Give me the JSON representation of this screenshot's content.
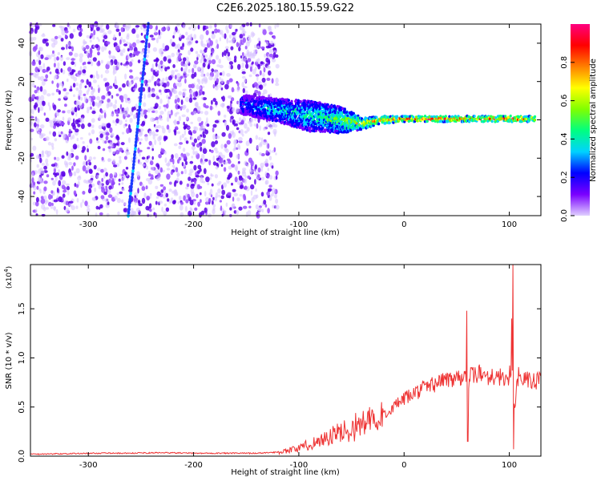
{
  "figure": {
    "title": "C2E6.2025.180.15.59.G22"
  },
  "chart_data": [
    {
      "type": "heatmap",
      "xlabel": "Height of straight line (km)",
      "ylabel": "Frequency (Hz)",
      "xlim": [
        -355,
        130
      ],
      "ylim": [
        -50,
        50
      ],
      "xticks": [
        -300,
        -200,
        -100,
        0,
        100
      ],
      "xtick_labels": [
        "-300",
        "-200",
        "-100",
        "0",
        "100"
      ],
      "yticks": [
        -40,
        -20,
        0,
        20,
        40
      ],
      "ytick_labels": [
        "-40",
        "-20",
        "0",
        "20",
        "40"
      ],
      "colorbar": {
        "label": "Normalized spectral amplitude",
        "range": [
          0,
          1
        ],
        "ticks": [
          0.0,
          0.2,
          0.4,
          0.6,
          0.8
        ],
        "tick_labels": [
          "0.0",
          "0.2",
          "0.4",
          "0.6",
          "0.8"
        ],
        "colors": [
          "#e0d0ff",
          "#7a00ff",
          "#0000ff",
          "#00d2ff",
          "#00ff80",
          "#80ff00",
          "#ffff00",
          "#ff8000",
          "#ff0000",
          "#ff0080"
        ]
      },
      "features": [
        {
          "name": "noise_band",
          "x_range": [
            -355,
            -120
          ],
          "freq_range": [
            -50,
            50
          ],
          "amplitude": 0.15
        },
        {
          "name": "diagonal_track",
          "x": [
            -262,
            -243
          ],
          "freq": [
            -50,
            50
          ],
          "amplitude": 0.35
        },
        {
          "name": "signal_band",
          "x": [
            -155,
            -120,
            -90,
            -60,
            -40,
            -20,
            0,
            20,
            50,
            80,
            100,
            125
          ],
          "freq": [
            8,
            5,
            2,
            0,
            -2,
            0,
            0.5,
            0.5,
            0.5,
            0.5,
            0.5,
            0.5
          ],
          "half_width": [
            5,
            6,
            8,
            7,
            3,
            2,
            1.5,
            1.5,
            1.5,
            1.5,
            1.5,
            1.5
          ],
          "amplitude": [
            0.3,
            0.4,
            0.45,
            0.55,
            0.7,
            0.85,
            0.9,
            0.9,
            0.85,
            0.9,
            0.95,
            0.8
          ]
        }
      ],
      "grid": false
    },
    {
      "type": "line",
      "xlabel": "Height of straight line (km)",
      "ylabel": "SNR (10 * v/v)",
      "y_multiplier": "(x10",
      "y_multiplier_exp": "4",
      "y_multiplier_close": ")",
      "xlim": [
        -355,
        130
      ],
      "ylim": [
        0,
        1.95
      ],
      "xticks": [
        -300,
        -200,
        -100,
        0,
        100
      ],
      "xtick_labels": [
        "-300",
        "-200",
        "-100",
        "0",
        "100"
      ],
      "yticks": [
        0.0,
        0.5,
        1.0,
        1.5
      ],
      "ytick_labels": [
        "0.0",
        "0.5",
        "1.0",
        "1.5"
      ],
      "series": [
        {
          "color": "#ee3333",
          "x": [
            -355,
            -320,
            -290,
            -260,
            -230,
            -200,
            -180,
            -160,
            -140,
            -120,
            -110,
            -100,
            -90,
            -80,
            -70,
            -60,
            -50,
            -40,
            -30,
            -25,
            -20,
            -10,
            0,
            10,
            20,
            30,
            40,
            50,
            55,
            58,
            60,
            62,
            65,
            70,
            80,
            90,
            95,
            100,
            103,
            105,
            107,
            110,
            115,
            120,
            125,
            130
          ],
          "y": [
            0.02,
            0.025,
            0.03,
            0.03,
            0.035,
            0.03,
            0.03,
            0.03,
            0.03,
            0.04,
            0.06,
            0.08,
            0.12,
            0.16,
            0.2,
            0.24,
            0.28,
            0.33,
            0.36,
            0.3,
            0.42,
            0.5,
            0.58,
            0.64,
            0.7,
            0.74,
            0.78,
            0.8,
            0.82,
            0.9,
            0.55,
            0.8,
            0.82,
            0.84,
            0.82,
            0.8,
            0.8,
            0.82,
            0.85,
            0.4,
            0.8,
            0.82,
            0.78,
            0.76,
            0.76,
            0.78
          ],
          "spikes": [
            {
              "x": 59.5,
              "y": 1.48
            },
            {
              "x": 60.5,
              "y": 0.15
            },
            {
              "x": 103.5,
              "y": 1.96
            },
            {
              "x": 104,
              "y": 0.07
            },
            {
              "x": 102,
              "y": 1.4
            }
          ]
        }
      ],
      "grid": false
    }
  ]
}
